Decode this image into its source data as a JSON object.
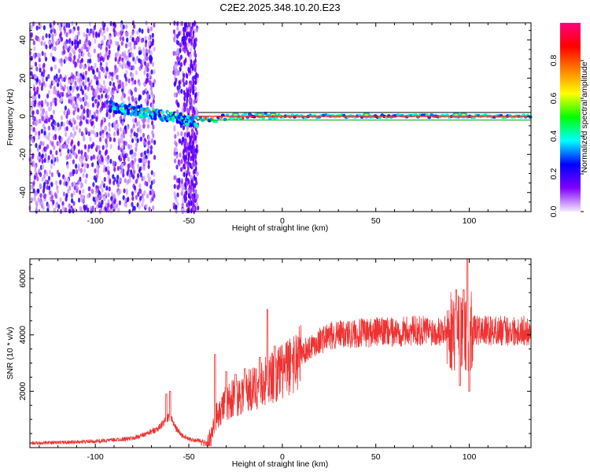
{
  "figure": {
    "title": "C2E2.2025.348.10.20.E23"
  },
  "chart_data": [
    {
      "type": "heatmap",
      "xlabel": "Height of straight line (km)",
      "ylabel": "Frequency (Hz)",
      "xlim": [
        -135,
        133
      ],
      "ylim": [
        -50,
        49
      ],
      "xticks": [
        -100,
        -50,
        0,
        50,
        100
      ],
      "yticks": [
        -40,
        -20,
        0,
        20,
        40
      ],
      "colorbar": {
        "label": "Normalized spectral amplitude",
        "range": [
          0,
          1
        ],
        "ticks": [
          0.0,
          0.2,
          0.4,
          0.6,
          0.8
        ],
        "colors": [
          "#f4ecff",
          "#8000ff",
          "#0000ff",
          "#00ffff",
          "#00ff00",
          "#ffff00",
          "#ff8000",
          "#ff0000",
          "#ff0080"
        ]
      },
      "features": {
        "noise_region_x": [
          -135,
          -45
        ],
        "gap_x": [
          -68,
          -58
        ],
        "band_start_x": -92,
        "band_start_freq": 5,
        "converge_x": -45,
        "line_freq": 0,
        "bright_blobs_x": [
          -25,
          -12,
          -5,
          93,
          97,
          45
        ],
        "reference_lines_freq": [
          -2,
          0,
          2
        ]
      }
    },
    {
      "type": "line",
      "xlabel": "Height of straight line (km)",
      "ylabel": "SNR (10 * v/v)",
      "xlim": [
        -135,
        133
      ],
      "ylim": [
        0,
        6700
      ],
      "xticks": [
        -100,
        -50,
        0,
        50,
        100
      ],
      "yticks": [
        2000,
        4000,
        6000
      ],
      "line_color": "#ee3333",
      "series": [
        {
          "x": [
            -135,
            -120,
            -100,
            -80,
            -72,
            -66,
            -62,
            -60,
            -57,
            -54,
            -50,
            -45,
            -40,
            -38,
            -36,
            -34,
            -30,
            -25,
            -20,
            -15,
            -10,
            -5,
            0,
            5,
            10,
            15,
            20,
            25,
            30,
            35,
            40,
            50,
            60,
            70,
            80,
            88,
            92,
            95,
            98,
            100,
            102,
            105,
            110,
            120,
            133
          ],
          "y": [
            160,
            180,
            220,
            330,
            500,
            700,
            1000,
            1100,
            700,
            450,
            300,
            250,
            200,
            500,
            1000,
            1300,
            1600,
            1800,
            2000,
            2100,
            2300,
            2500,
            2700,
            2950,
            3300,
            3600,
            3800,
            3950,
            4000,
            4050,
            4050,
            4100,
            4100,
            4150,
            4150,
            4150,
            4100,
            4100,
            4000,
            4100,
            4150,
            4150,
            4150,
            4150,
            4150
          ]
        }
      ],
      "spikes": [
        {
          "x": -62,
          "y": 1900
        },
        {
          "x": -60,
          "y": 2000
        },
        {
          "x": -36,
          "y": 3300
        },
        {
          "x": -30,
          "y": 2700
        },
        {
          "x": -25,
          "y": 2600
        },
        {
          "x": -20,
          "y": 2800
        },
        {
          "x": -12,
          "y": 3200
        },
        {
          "x": -8,
          "y": 4900
        },
        {
          "x": -4,
          "y": 3600
        },
        {
          "x": 5,
          "y": 3300
        },
        {
          "x": 93,
          "y": 5600
        },
        {
          "x": 95,
          "y": 2200
        },
        {
          "x": 97,
          "y": 5600
        },
        {
          "x": 99,
          "y": 6700
        },
        {
          "x": 100,
          "y": 2000
        }
      ]
    }
  ]
}
